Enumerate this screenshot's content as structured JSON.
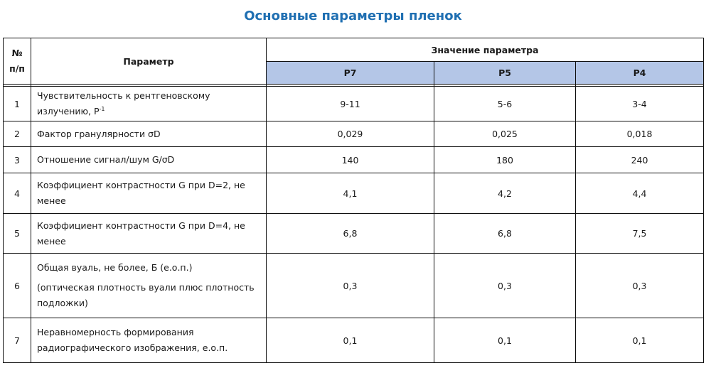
{
  "title": "Основные параметры пленок",
  "header": {
    "num_label_line1": "№",
    "num_label_line2": "п/п",
    "param_label": "Параметр",
    "value_group_label": "Значение параметра",
    "columns": [
      "Р7",
      "Р5",
      "Р4"
    ]
  },
  "header_color": "#b4c6e7",
  "title_color": "#1f6fb2",
  "rows": [
    {
      "num": "1",
      "param_lines": [
        "Чувствительность к рентгеновскому",
        "излучению, Р"
      ],
      "param_sup": "-1",
      "values": [
        "9-11",
        "5-6",
        "3-4"
      ]
    },
    {
      "num": "2",
      "param_lines": [
        "Фактор гранулярности σD"
      ],
      "values": [
        "0,029",
        "0,025",
        "0,018"
      ]
    },
    {
      "num": "3",
      "param_lines": [
        "Отношение сигнал/шум G/σD"
      ],
      "values": [
        "140",
        "180",
        "240"
      ]
    },
    {
      "num": "4",
      "param_lines": [
        "Коэффициент контрастности G при D=2, не",
        "менее"
      ],
      "values": [
        "4,1",
        "4,2",
        "4,4"
      ]
    },
    {
      "num": "5",
      "param_lines": [
        "Коэффициент контрастности G при D=4, не",
        "менее"
      ],
      "values": [
        "6,8",
        "6,8",
        "7,5"
      ]
    },
    {
      "num": "6",
      "param_lines": [
        "Общая вуаль, не более, Б (е.о.п.)",
        "(оптическая плотность вуали плюс плотность",
        "подложки)"
      ],
      "values": [
        "0,3",
        "0,3",
        "0,3"
      ]
    },
    {
      "num": "7",
      "param_lines": [
        "Неравномерность формирования",
        "радиографического изображения, е.о.п."
      ],
      "values": [
        "0,1",
        "0,1",
        "0,1"
      ]
    }
  ]
}
